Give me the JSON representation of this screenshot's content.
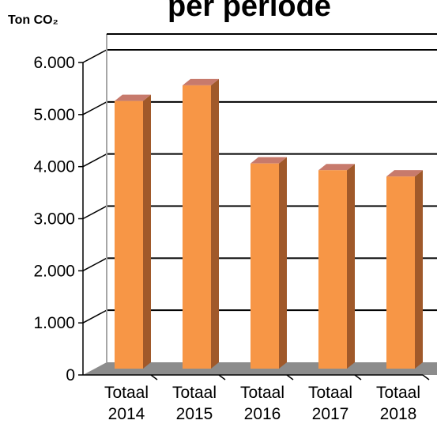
{
  "chart_data": {
    "type": "bar",
    "title": "per periode",
    "unit_label": "Ton CO₂",
    "categories": [
      [
        "Totaal",
        "2014"
      ],
      [
        "Totaal",
        "2015"
      ],
      [
        "Totaal",
        "2016"
      ],
      [
        "Totaal",
        "2017"
      ],
      [
        "Totaal",
        "2018"
      ]
    ],
    "values": [
      5200,
      5500,
      4000,
      3870,
      3750
    ],
    "yticks": [
      "0",
      "1.000",
      "2.000",
      "3.000",
      "4.000",
      "5.000",
      "6.000"
    ],
    "ylim": [
      0,
      6000
    ],
    "grid": true,
    "style": "3d-column",
    "colors": {
      "bar_front": "#F79646",
      "bar_side": "#A0592A",
      "bar_top": "#C77A6C",
      "floor": "#8C8C8C",
      "grid": "#000000",
      "wall_edge": "#A6A6A6"
    }
  }
}
